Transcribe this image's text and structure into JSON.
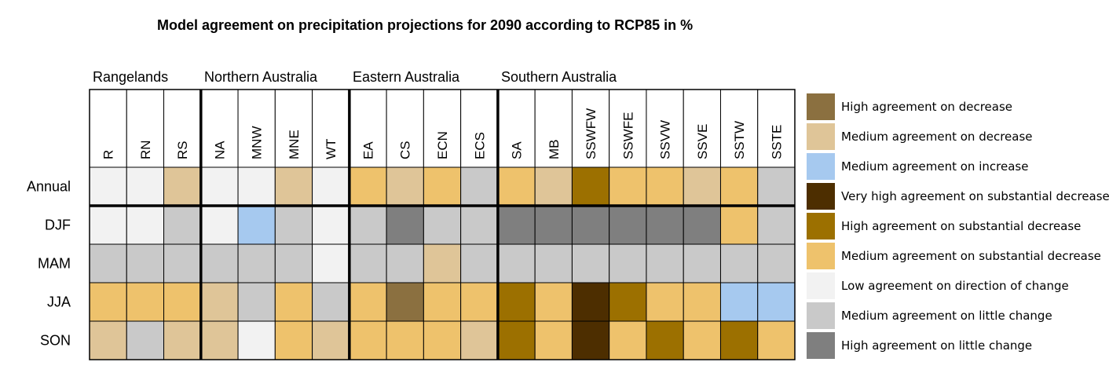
{
  "chart_data": {
    "type": "heatmap",
    "title": "Model agreement on precipitation projections for 2090 according to RCP85 in %",
    "groups": [
      {
        "label": "Rangelands",
        "columns": [
          "R",
          "RN",
          "RS"
        ]
      },
      {
        "label": "Northern Australia",
        "columns": [
          "NA",
          "MNW",
          "MNE",
          "WT"
        ]
      },
      {
        "label": "Eastern Australia",
        "columns": [
          "EA",
          "CS",
          "ECN",
          "ECS"
        ]
      },
      {
        "label": "Southern Australia",
        "columns": [
          "SA",
          "MB",
          "SSWFW",
          "SSWFE",
          "SSVW",
          "SSVE",
          "SSTW",
          "SSTE"
        ]
      }
    ],
    "columns": [
      "R",
      "RN",
      "RS",
      "NA",
      "MNW",
      "MNE",
      "WT",
      "EA",
      "CS",
      "ECN",
      "ECS",
      "SA",
      "MB",
      "SSWFW",
      "SSWFE",
      "SSVW",
      "SSVE",
      "SSTW",
      "SSTE"
    ],
    "rows": [
      "Annual",
      "DJF",
      "MAM",
      "JJA",
      "SON"
    ],
    "categories": [
      {
        "key": "HD",
        "label": "High agreement on decrease",
        "color": "#8b7040"
      },
      {
        "key": "MD",
        "label": "Medium agreement on decrease",
        "color": "#dfc598"
      },
      {
        "key": "MI",
        "label": "Medium agreement on increase",
        "color": "#a6c9ef"
      },
      {
        "key": "VHSD",
        "label": "Very high agreement on substantial decrease",
        "color": "#4d2e00"
      },
      {
        "key": "HSD",
        "label": "High agreement on substantial decrease",
        "color": "#9c7000"
      },
      {
        "key": "MSD",
        "label": "Medium agreement on substantial decrease",
        "color": "#eec26c"
      },
      {
        "key": "LDC",
        "label": "Low agreement on direction of change",
        "color": "#f2f2f2"
      },
      {
        "key": "MLC",
        "label": "Medium agreement on little change",
        "color": "#c9c9c9"
      },
      {
        "key": "HLC",
        "label": "High agreement on little change",
        "color": "#7f7f7f"
      }
    ],
    "values": [
      [
        "LDC",
        "LDC",
        "MD",
        "LDC",
        "LDC",
        "MD",
        "LDC",
        "MSD",
        "MD",
        "MSD",
        "MLC",
        "MSD",
        "MD",
        "HSD",
        "MSD",
        "MSD",
        "MD",
        "MSD",
        "MLC"
      ],
      [
        "LDC",
        "LDC",
        "MLC",
        "LDC",
        "MI",
        "MLC",
        "LDC",
        "MLC",
        "HLC",
        "MLC",
        "MLC",
        "HLC",
        "HLC",
        "HLC",
        "HLC",
        "HLC",
        "HLC",
        "MSD",
        "MLC"
      ],
      [
        "MLC",
        "MLC",
        "MLC",
        "MLC",
        "MLC",
        "MLC",
        "LDC",
        "MLC",
        "MLC",
        "MD",
        "MLC",
        "MLC",
        "MLC",
        "MLC",
        "MLC",
        "MLC",
        "MLC",
        "MLC",
        "MLC"
      ],
      [
        "MSD",
        "MSD",
        "MSD",
        "MD",
        "MLC",
        "MSD",
        "MLC",
        "MSD",
        "HD",
        "MSD",
        "MSD",
        "HSD",
        "MSD",
        "VHSD",
        "HSD",
        "MSD",
        "MSD",
        "MI",
        "MI"
      ],
      [
        "MD",
        "MLC",
        "MD",
        "MD",
        "LDC",
        "MSD",
        "MD",
        "MSD",
        "MSD",
        "MSD",
        "MD",
        "HSD",
        "MSD",
        "VHSD",
        "MSD",
        "HSD",
        "MSD",
        "HSD",
        "MSD"
      ]
    ]
  }
}
